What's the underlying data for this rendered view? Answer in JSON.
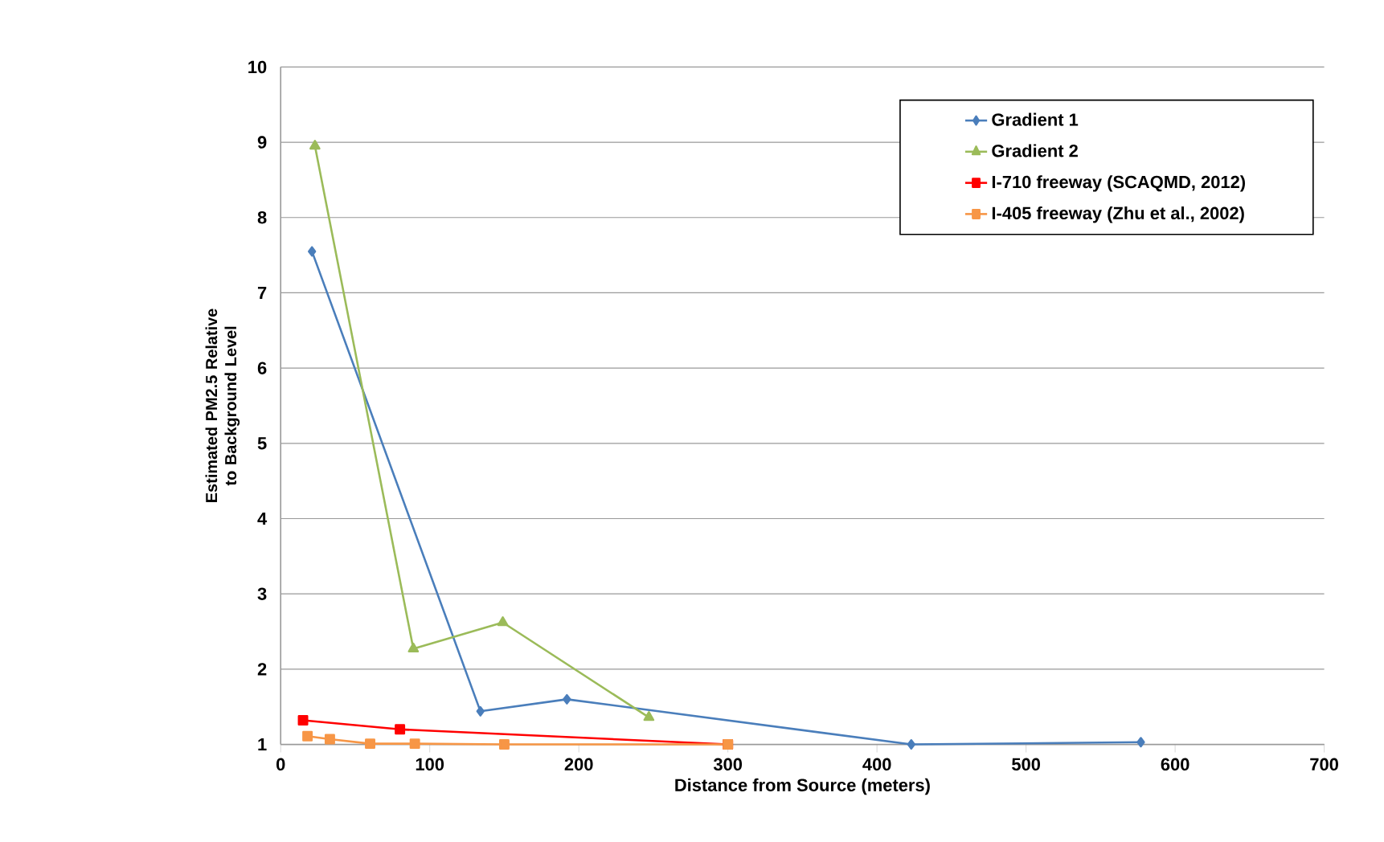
{
  "chart_data": {
    "type": "line",
    "xlabel": "Distance from  Source (meters)",
    "ylabel": "Estimated PM2.5 Relative to Background Level",
    "xlim": [
      0,
      700
    ],
    "xticks": [
      0,
      100,
      200,
      300,
      400,
      500,
      600,
      700
    ],
    "ylim": [
      1,
      10
    ],
    "yticks": [
      1,
      2,
      3,
      4,
      5,
      6,
      7,
      8,
      9,
      10
    ],
    "grid": "y",
    "legend": "top right",
    "line_style": "solid",
    "series": [
      {
        "name": "Gradient 1",
        "color": "#4a7ebb",
        "marker": "diamond",
        "x": [
          21,
          134,
          192,
          423,
          577
        ],
        "values": [
          7.55,
          1.44,
          1.6,
          1.0,
          1.03
        ]
      },
      {
        "name": "Gradient 2",
        "color": "#9bbb59",
        "marker": "triangle",
        "x": [
          23,
          89,
          149,
          247
        ],
        "values": [
          8.95,
          2.27,
          2.62,
          1.36
        ]
      },
      {
        "name": "I-710 freeway (SCAQMD, 2012)",
        "color": "#ff0000",
        "marker": "square",
        "x": [
          15,
          80,
          300
        ],
        "values": [
          1.32,
          1.2,
          1.0
        ]
      },
      {
        "name": "I-405 freeway (Zhu et al., 2002)",
        "color": "#f79646",
        "marker": "square",
        "x": [
          18,
          33,
          60,
          90,
          150,
          300
        ],
        "values": [
          1.11,
          1.07,
          1.01,
          1.01,
          1.0,
          1.0
        ]
      }
    ]
  }
}
